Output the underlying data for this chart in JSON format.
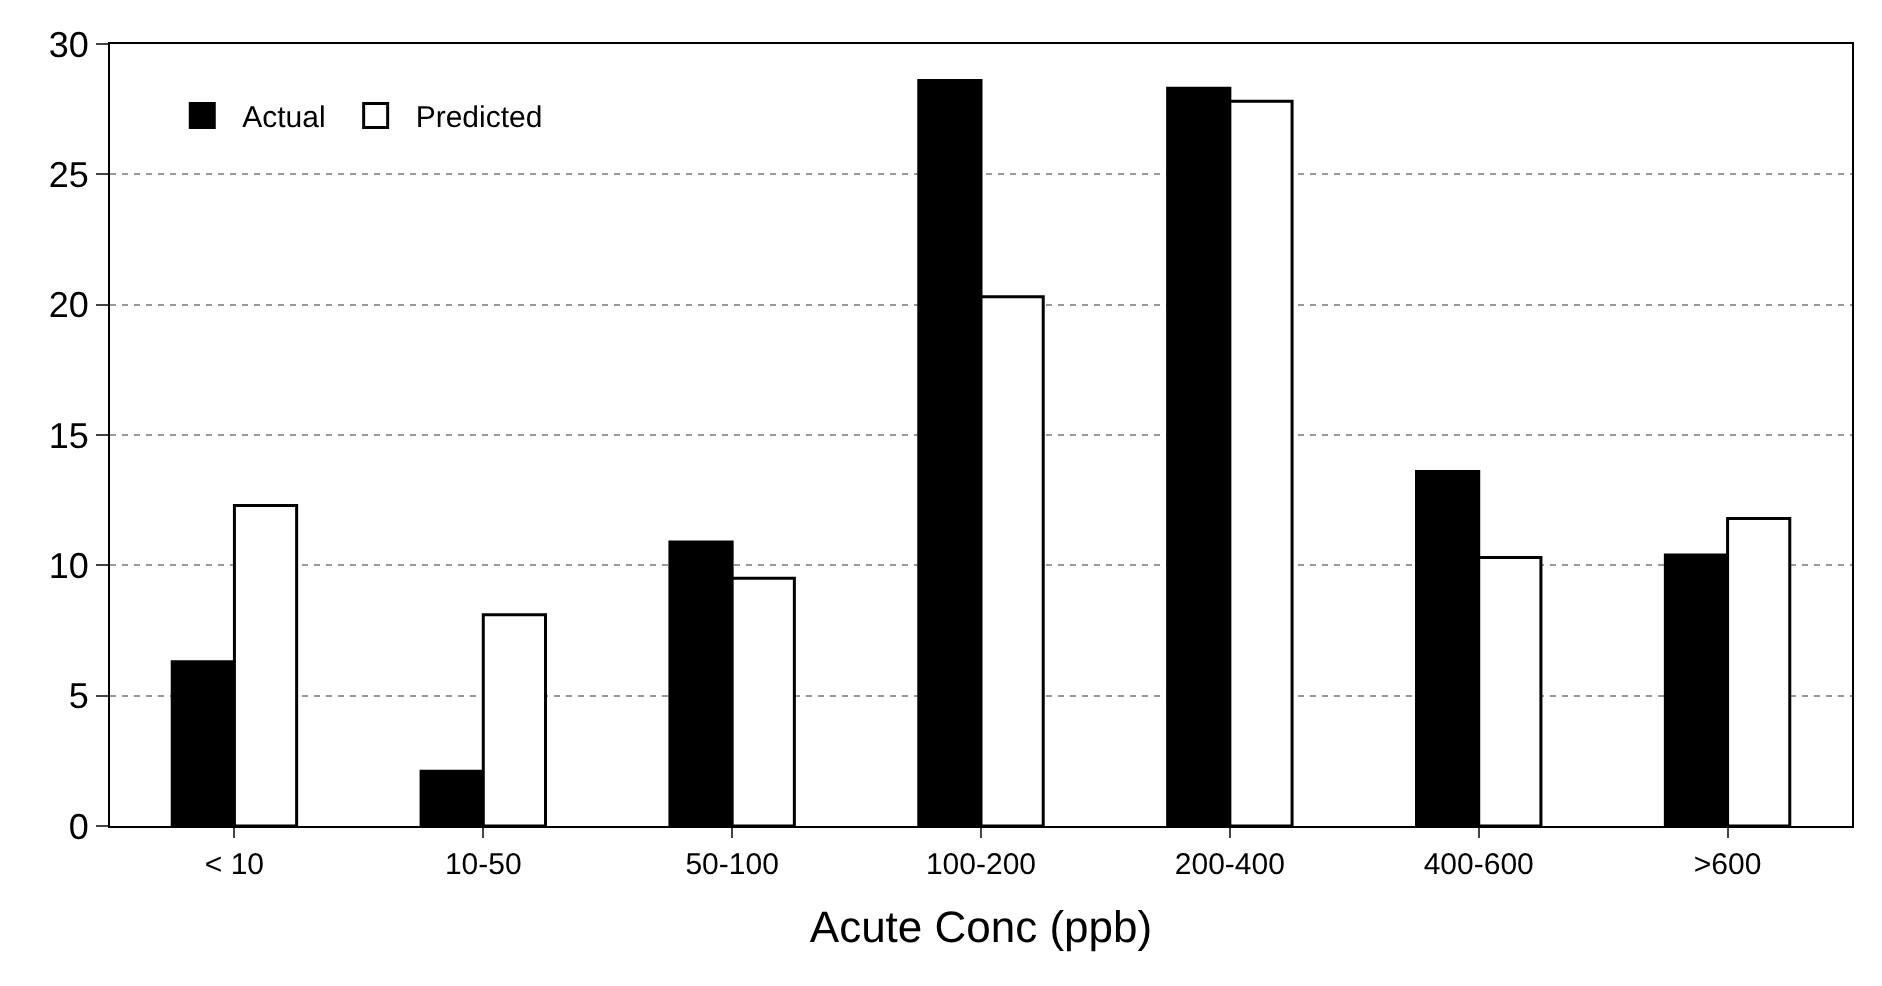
{
  "chart_data": {
    "type": "bar",
    "xlabel": "Acute Conc (ppb)",
    "categories": [
      "< 10",
      "10-50",
      "50-100",
      "100-200",
      "200-400",
      "400-600",
      ">600"
    ],
    "series": [
      {
        "name": "Actual",
        "color": "#000000",
        "values": [
          6.3,
          2.1,
          10.9,
          28.6,
          28.3,
          13.6,
          10.4
        ]
      },
      {
        "name": "Predicted",
        "color": "#ffffff",
        "values": [
          12.3,
          8.1,
          9.5,
          20.3,
          27.8,
          10.3,
          11.8
        ]
      }
    ],
    "ylim": [
      0,
      30
    ],
    "yticks": [
      0,
      5,
      10,
      15,
      20,
      25,
      30
    ],
    "grid": "y",
    "legend": "top left"
  }
}
